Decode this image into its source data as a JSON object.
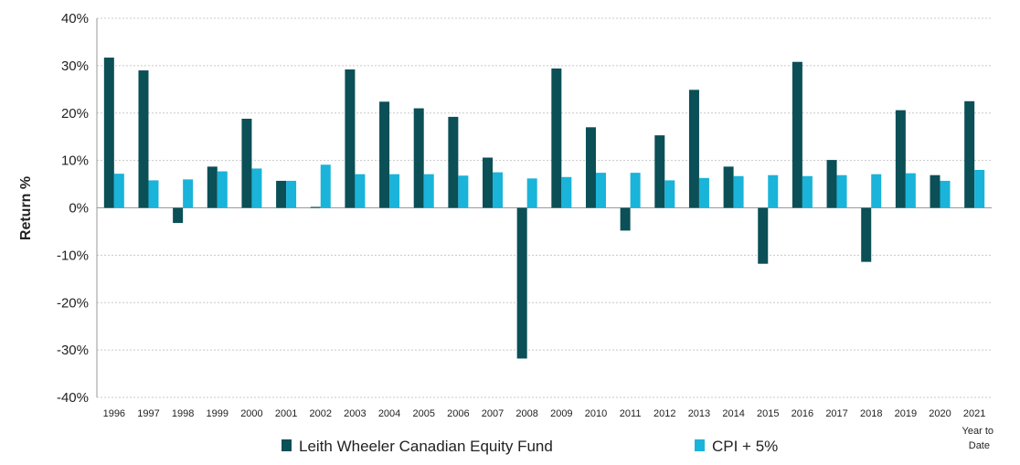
{
  "chart_data": {
    "type": "bar",
    "ylabel": "Return %",
    "ylim": [
      -40,
      40
    ],
    "yticks": [
      40,
      30,
      20,
      10,
      0,
      -10,
      -20,
      -30,
      -40
    ],
    "ytick_labels": [
      "40%",
      "30%",
      "20%",
      "10%",
      "0%",
      "-10%",
      "-20%",
      "-30%",
      "-40%"
    ],
    "grid": "horizontal",
    "legend_position": "bottom",
    "categories": [
      "1996",
      "1997",
      "1998",
      "1999",
      "2000",
      "2001",
      "2002",
      "2003",
      "2004",
      "2005",
      "2006",
      "2007",
      "2008",
      "2009",
      "2010",
      "2011",
      "2012",
      "2013",
      "2014",
      "2015",
      "2016",
      "2017",
      "2018",
      "2019",
      "2020",
      "2021"
    ],
    "last_category_note": [
      "Year to",
      "Date"
    ],
    "series": [
      {
        "name": "Leith Wheeler Canadian Equity Fund",
        "color": "#0b4f57",
        "values": [
          31.7,
          29.0,
          -3.2,
          8.7,
          18.8,
          5.7,
          0.2,
          29.2,
          22.4,
          21.0,
          19.2,
          10.6,
          -31.8,
          29.4,
          17.0,
          -4.8,
          15.3,
          24.9,
          8.7,
          -11.8,
          30.8,
          10.1,
          -11.4,
          20.6,
          6.9,
          22.5
        ]
      },
      {
        "name": "CPI + 5%",
        "color": "#1ab3d9",
        "values": [
          7.2,
          5.8,
          6.0,
          7.7,
          8.3,
          5.7,
          9.1,
          7.1,
          7.1,
          7.1,
          6.8,
          7.5,
          6.2,
          6.5,
          7.4,
          7.4,
          5.8,
          6.3,
          6.7,
          6.9,
          6.7,
          6.9,
          7.1,
          7.3,
          5.7,
          8.0
        ]
      }
    ]
  }
}
